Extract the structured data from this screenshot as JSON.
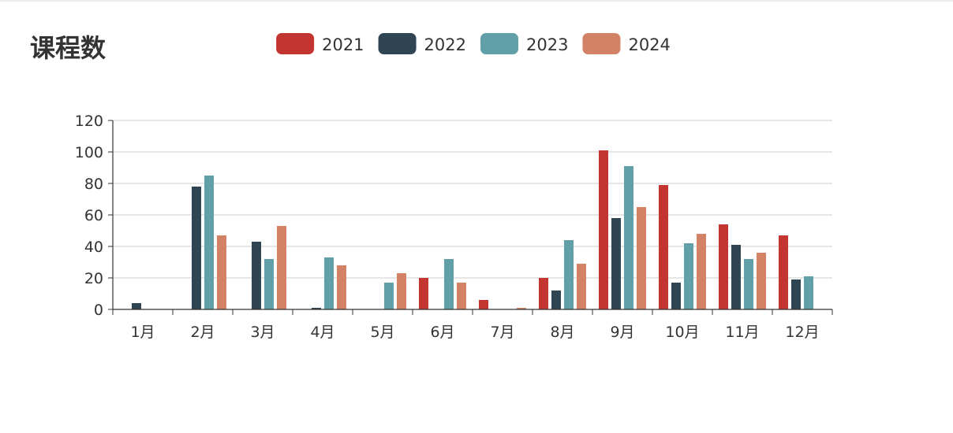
{
  "chart_data": {
    "type": "bar",
    "title": "课程数",
    "categories": [
      "1月",
      "2月",
      "3月",
      "4月",
      "5月",
      "6月",
      "7月",
      "8月",
      "9月",
      "10月",
      "11月",
      "12月"
    ],
    "series": [
      {
        "name": "2021",
        "color": "#c23531",
        "values": [
          0,
          0,
          0,
          0,
          0,
          20,
          6,
          20,
          101,
          79,
          54,
          47
        ]
      },
      {
        "name": "2022",
        "color": "#2f4554",
        "values": [
          4,
          78,
          43,
          1,
          0,
          0,
          0,
          12,
          58,
          17,
          41,
          19
        ]
      },
      {
        "name": "2023",
        "color": "#61a0a8",
        "values": [
          0,
          85,
          32,
          33,
          17,
          32,
          0,
          44,
          91,
          42,
          32,
          21
        ]
      },
      {
        "name": "2024",
        "color": "#d48265",
        "values": [
          0,
          47,
          53,
          28,
          23,
          17,
          1,
          29,
          65,
          48,
          36,
          0
        ]
      }
    ],
    "yticks": [
      0,
      20,
      40,
      60,
      80,
      100,
      120
    ],
    "ylim": [
      0,
      120
    ],
    "grid": true,
    "legend": "top-center"
  }
}
